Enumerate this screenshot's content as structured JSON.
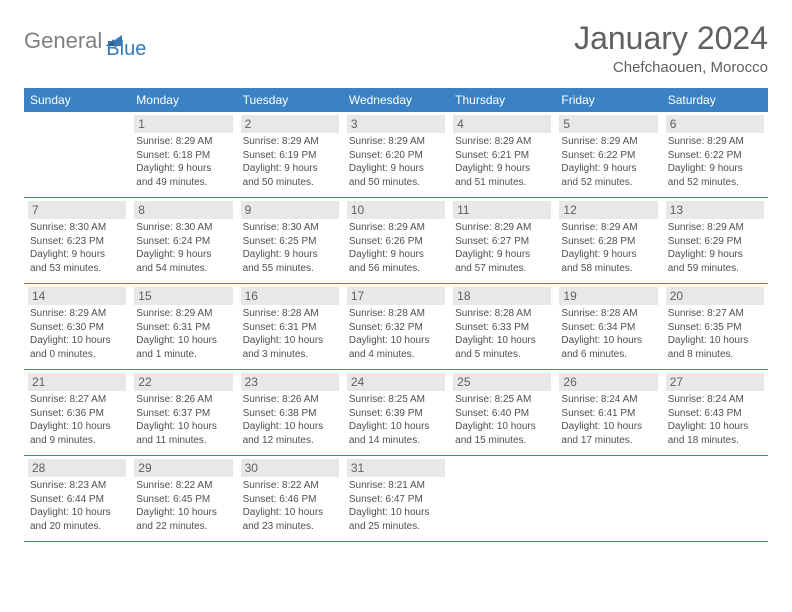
{
  "logo": {
    "text_general": "General",
    "text_blue": "Blue",
    "shape_color": "#3a78b5"
  },
  "title": "January 2024",
  "location": "Chefchaouen, Morocco",
  "header_bg": "#3a82c4",
  "day_names": [
    "Sunday",
    "Monday",
    "Tuesday",
    "Wednesday",
    "Thursday",
    "Friday",
    "Saturday"
  ],
  "weeks": [
    {
      "days": [
        null,
        {
          "num": "1",
          "sunrise": "Sunrise: 8:29 AM",
          "sunset": "Sunset: 6:18 PM",
          "daylight": "Daylight: 9 hours and 49 minutes."
        },
        {
          "num": "2",
          "sunrise": "Sunrise: 8:29 AM",
          "sunset": "Sunset: 6:19 PM",
          "daylight": "Daylight: 9 hours and 50 minutes."
        },
        {
          "num": "3",
          "sunrise": "Sunrise: 8:29 AM",
          "sunset": "Sunset: 6:20 PM",
          "daylight": "Daylight: 9 hours and 50 minutes."
        },
        {
          "num": "4",
          "sunrise": "Sunrise: 8:29 AM",
          "sunset": "Sunset: 6:21 PM",
          "daylight": "Daylight: 9 hours and 51 minutes."
        },
        {
          "num": "5",
          "sunrise": "Sunrise: 8:29 AM",
          "sunset": "Sunset: 6:22 PM",
          "daylight": "Daylight: 9 hours and 52 minutes."
        },
        {
          "num": "6",
          "sunrise": "Sunrise: 8:29 AM",
          "sunset": "Sunset: 6:22 PM",
          "daylight": "Daylight: 9 hours and 52 minutes."
        }
      ]
    },
    {
      "days": [
        {
          "num": "7",
          "sunrise": "Sunrise: 8:30 AM",
          "sunset": "Sunset: 6:23 PM",
          "daylight": "Daylight: 9 hours and 53 minutes."
        },
        {
          "num": "8",
          "sunrise": "Sunrise: 8:30 AM",
          "sunset": "Sunset: 6:24 PM",
          "daylight": "Daylight: 9 hours and 54 minutes."
        },
        {
          "num": "9",
          "sunrise": "Sunrise: 8:30 AM",
          "sunset": "Sunset: 6:25 PM",
          "daylight": "Daylight: 9 hours and 55 minutes."
        },
        {
          "num": "10",
          "sunrise": "Sunrise: 8:29 AM",
          "sunset": "Sunset: 6:26 PM",
          "daylight": "Daylight: 9 hours and 56 minutes."
        },
        {
          "num": "11",
          "sunrise": "Sunrise: 8:29 AM",
          "sunset": "Sunset: 6:27 PM",
          "daylight": "Daylight: 9 hours and 57 minutes."
        },
        {
          "num": "12",
          "sunrise": "Sunrise: 8:29 AM",
          "sunset": "Sunset: 6:28 PM",
          "daylight": "Daylight: 9 hours and 58 minutes."
        },
        {
          "num": "13",
          "sunrise": "Sunrise: 8:29 AM",
          "sunset": "Sunset: 6:29 PM",
          "daylight": "Daylight: 9 hours and 59 minutes."
        }
      ]
    },
    {
      "days": [
        {
          "num": "14",
          "sunrise": "Sunrise: 8:29 AM",
          "sunset": "Sunset: 6:30 PM",
          "daylight": "Daylight: 10 hours and 0 minutes."
        },
        {
          "num": "15",
          "sunrise": "Sunrise: 8:29 AM",
          "sunset": "Sunset: 6:31 PM",
          "daylight": "Daylight: 10 hours and 1 minute."
        },
        {
          "num": "16",
          "sunrise": "Sunrise: 8:28 AM",
          "sunset": "Sunset: 6:31 PM",
          "daylight": "Daylight: 10 hours and 3 minutes."
        },
        {
          "num": "17",
          "sunrise": "Sunrise: 8:28 AM",
          "sunset": "Sunset: 6:32 PM",
          "daylight": "Daylight: 10 hours and 4 minutes."
        },
        {
          "num": "18",
          "sunrise": "Sunrise: 8:28 AM",
          "sunset": "Sunset: 6:33 PM",
          "daylight": "Daylight: 10 hours and 5 minutes."
        },
        {
          "num": "19",
          "sunrise": "Sunrise: 8:28 AM",
          "sunset": "Sunset: 6:34 PM",
          "daylight": "Daylight: 10 hours and 6 minutes."
        },
        {
          "num": "20",
          "sunrise": "Sunrise: 8:27 AM",
          "sunset": "Sunset: 6:35 PM",
          "daylight": "Daylight: 10 hours and 8 minutes."
        }
      ]
    },
    {
      "days": [
        {
          "num": "21",
          "sunrise": "Sunrise: 8:27 AM",
          "sunset": "Sunset: 6:36 PM",
          "daylight": "Daylight: 10 hours and 9 minutes."
        },
        {
          "num": "22",
          "sunrise": "Sunrise: 8:26 AM",
          "sunset": "Sunset: 6:37 PM",
          "daylight": "Daylight: 10 hours and 11 minutes."
        },
        {
          "num": "23",
          "sunrise": "Sunrise: 8:26 AM",
          "sunset": "Sunset: 6:38 PM",
          "daylight": "Daylight: 10 hours and 12 minutes."
        },
        {
          "num": "24",
          "sunrise": "Sunrise: 8:25 AM",
          "sunset": "Sunset: 6:39 PM",
          "daylight": "Daylight: 10 hours and 14 minutes."
        },
        {
          "num": "25",
          "sunrise": "Sunrise: 8:25 AM",
          "sunset": "Sunset: 6:40 PM",
          "daylight": "Daylight: 10 hours and 15 minutes."
        },
        {
          "num": "26",
          "sunrise": "Sunrise: 8:24 AM",
          "sunset": "Sunset: 6:41 PM",
          "daylight": "Daylight: 10 hours and 17 minutes."
        },
        {
          "num": "27",
          "sunrise": "Sunrise: 8:24 AM",
          "sunset": "Sunset: 6:43 PM",
          "daylight": "Daylight: 10 hours and 18 minutes."
        }
      ]
    },
    {
      "days": [
        {
          "num": "28",
          "sunrise": "Sunrise: 8:23 AM",
          "sunset": "Sunset: 6:44 PM",
          "daylight": "Daylight: 10 hours and 20 minutes."
        },
        {
          "num": "29",
          "sunrise": "Sunrise: 8:22 AM",
          "sunset": "Sunset: 6:45 PM",
          "daylight": "Daylight: 10 hours and 22 minutes."
        },
        {
          "num": "30",
          "sunrise": "Sunrise: 8:22 AM",
          "sunset": "Sunset: 6:46 PM",
          "daylight": "Daylight: 10 hours and 23 minutes."
        },
        {
          "num": "31",
          "sunrise": "Sunrise: 8:21 AM",
          "sunset": "Sunset: 6:47 PM",
          "daylight": "Daylight: 10 hours and 25 minutes."
        },
        null,
        null,
        null
      ]
    }
  ]
}
